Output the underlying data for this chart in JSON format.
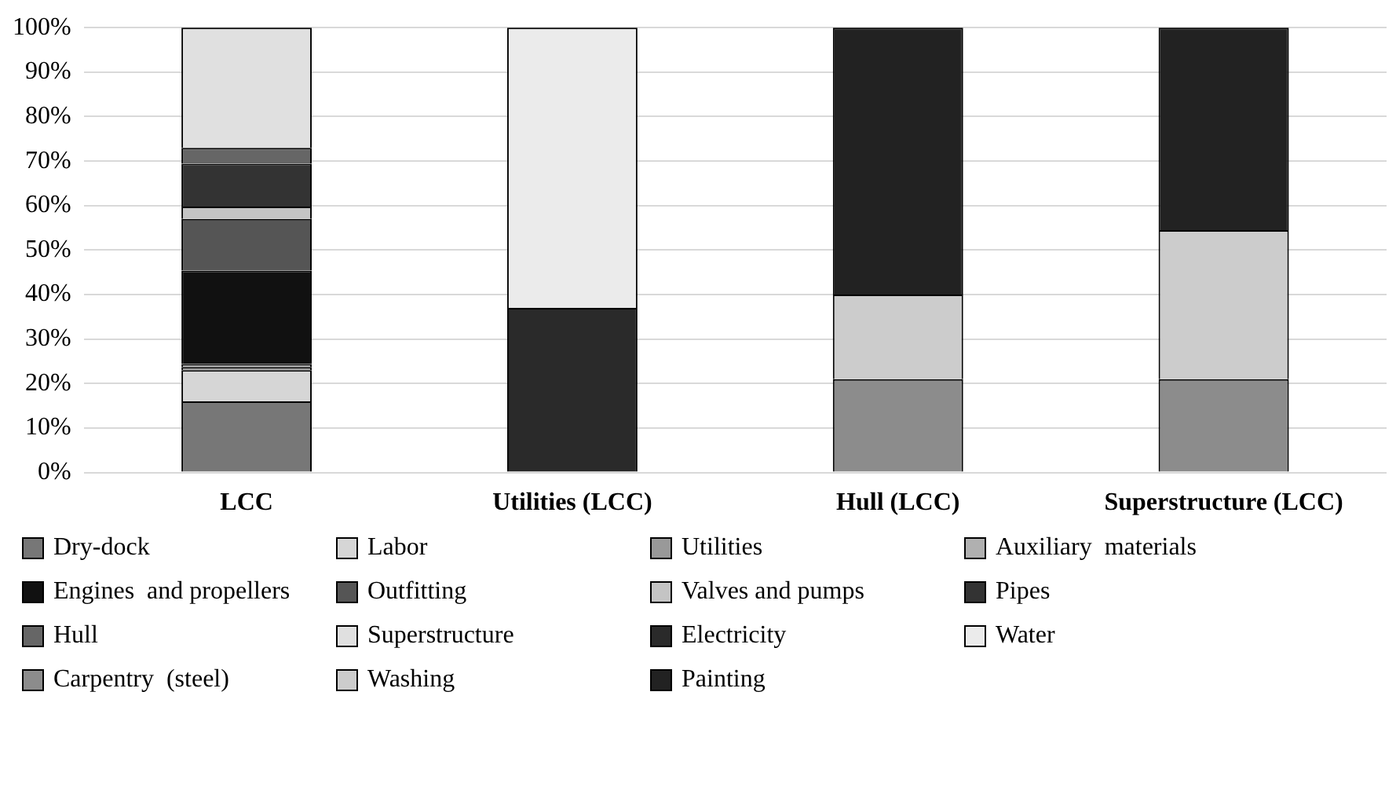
{
  "chart_data": {
    "type": "bar",
    "stacked": true,
    "categories": [
      "LCC",
      "Utilities (LCC)",
      "Hull (LCC)",
      "Superstructure (LCC)"
    ],
    "series": [
      {
        "name": "Dry-dock",
        "color": "#777777",
        "values": [
          16,
          null,
          null,
          null
        ]
      },
      {
        "name": "Labor",
        "color": "#d6d6d6",
        "values": [
          7,
          null,
          null,
          null
        ]
      },
      {
        "name": "Utilities",
        "color": "#999999",
        "values": [
          0.7,
          null,
          null,
          null
        ]
      },
      {
        "name": "Auxiliary  materials",
        "color": "#b0b0b0",
        "values": [
          0.7,
          null,
          null,
          null
        ]
      },
      {
        "name": "Engines  and propellers",
        "color": "#111111",
        "values": [
          21,
          null,
          null,
          null
        ]
      },
      {
        "name": "Outfitting",
        "color": "#555555",
        "values": [
          11.6,
          null,
          null,
          null
        ]
      },
      {
        "name": "Valves and pumps",
        "color": "#c4c4c4",
        "values": [
          2.8,
          null,
          null,
          null
        ]
      },
      {
        "name": "Pipes",
        "color": "#333333",
        "values": [
          9.6,
          null,
          null,
          null
        ]
      },
      {
        "name": "Hull",
        "color": "#666666",
        "values": [
          3.6,
          null,
          null,
          null
        ]
      },
      {
        "name": "Superstructure",
        "color": "#e0e0e0",
        "values": [
          27,
          null,
          null,
          null
        ]
      },
      {
        "name": "Electricity",
        "color": "#2a2a2a",
        "values": [
          null,
          37,
          null,
          null
        ]
      },
      {
        "name": "Water",
        "color": "#ebebeb",
        "values": [
          null,
          63,
          null,
          null
        ]
      },
      {
        "name": "Carpentry  (steel)",
        "color": "#8c8c8c",
        "values": [
          null,
          null,
          21,
          21
        ]
      },
      {
        "name": "Washing",
        "color": "#cccccc",
        "values": [
          null,
          null,
          19,
          33.5
        ]
      },
      {
        "name": "Painting",
        "color": "#222222",
        "values": [
          null,
          null,
          60,
          45.5
        ]
      }
    ],
    "ylim": [
      0,
      100
    ],
    "yticks": [
      {
        "value": 0,
        "label": "0%"
      },
      {
        "value": 10,
        "label": "10%"
      },
      {
        "value": 20,
        "label": "20%"
      },
      {
        "value": 30,
        "label": "30%"
      },
      {
        "value": 40,
        "label": "40%"
      },
      {
        "value": 50,
        "label": "50%"
      },
      {
        "value": 60,
        "label": "60%"
      },
      {
        "value": 70,
        "label": "70%"
      },
      {
        "value": 80,
        "label": "80%"
      },
      {
        "value": 90,
        "label": "90%"
      },
      {
        "value": 100,
        "label": "100%"
      }
    ],
    "grid": "y",
    "legend": "bottom"
  }
}
